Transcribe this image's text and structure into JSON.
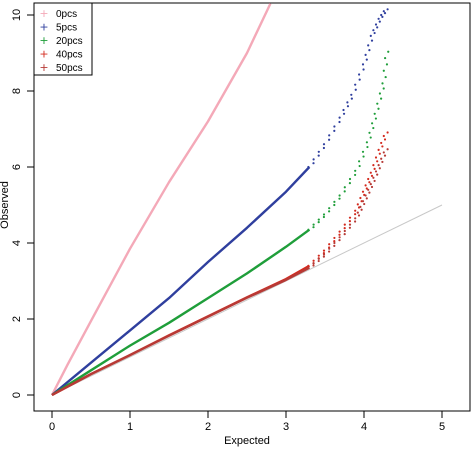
{
  "chart_data": {
    "type": "scatter",
    "title": "",
    "xlabel": "Expected",
    "ylabel": "Observed",
    "xlim": [
      0,
      5
    ],
    "ylim": [
      0,
      10
    ],
    "x_ticks": [
      "0",
      "1",
      "2",
      "3",
      "4",
      "5"
    ],
    "y_ticks": [
      "0",
      "2",
      "4",
      "6",
      "8",
      "10"
    ],
    "legend_position": "top-left",
    "reference_line": {
      "x": [
        0,
        5
      ],
      "y": [
        0,
        5
      ],
      "color": "#c8c8c8"
    },
    "series": [
      {
        "name": "0pcs",
        "color": "#f4a9b8",
        "x": [
          0,
          0.2,
          0.5,
          1.0,
          1.5,
          2.0,
          2.5,
          2.8
        ],
        "y": [
          0,
          0.8,
          1.95,
          3.85,
          5.6,
          7.2,
          9.0,
          10.3
        ]
      },
      {
        "name": "5pcs",
        "color": "#2f3f9e",
        "x": [
          0,
          0.5,
          1.0,
          1.5,
          2.0,
          2.5,
          3.0,
          3.3,
          3.5,
          3.7,
          3.85,
          4.0,
          4.1,
          4.2,
          4.3
        ],
        "y": [
          0,
          0.85,
          1.7,
          2.55,
          3.5,
          4.4,
          5.35,
          6.0,
          6.6,
          7.3,
          7.9,
          8.7,
          9.45,
          9.9,
          10.2
        ]
      },
      {
        "name": "20pcs",
        "color": "#1f9e3a",
        "x": [
          0,
          0.5,
          1.0,
          1.5,
          2.0,
          2.5,
          3.0,
          3.3,
          3.5,
          3.7,
          3.9,
          4.05,
          4.15,
          4.25,
          4.3
        ],
        "y": [
          0,
          0.65,
          1.3,
          1.9,
          2.55,
          3.2,
          3.9,
          4.35,
          4.75,
          5.25,
          5.9,
          6.65,
          7.4,
          8.2,
          9.2
        ]
      },
      {
        "name": "40pcs",
        "color": "#d42a1e",
        "x": [
          0,
          0.5,
          1.0,
          1.5,
          2.0,
          2.5,
          3.0,
          3.3,
          3.5,
          3.7,
          3.9,
          4.0,
          4.1,
          4.2,
          4.3
        ],
        "y": [
          0,
          0.55,
          1.05,
          1.57,
          2.07,
          2.57,
          3.05,
          3.4,
          3.8,
          4.3,
          4.85,
          5.35,
          5.85,
          6.45,
          7.0
        ]
      },
      {
        "name": "50pcs",
        "color": "#b73a36",
        "x": [
          0,
          0.5,
          1.0,
          1.5,
          2.0,
          2.5,
          3.0,
          3.3,
          3.5,
          3.7,
          3.9,
          4.0,
          4.1,
          4.2,
          4.3
        ],
        "y": [
          0,
          0.55,
          1.05,
          1.56,
          2.06,
          2.56,
          3.03,
          3.35,
          3.7,
          4.15,
          4.65,
          5.1,
          5.55,
          6.05,
          6.55
        ]
      }
    ]
  }
}
